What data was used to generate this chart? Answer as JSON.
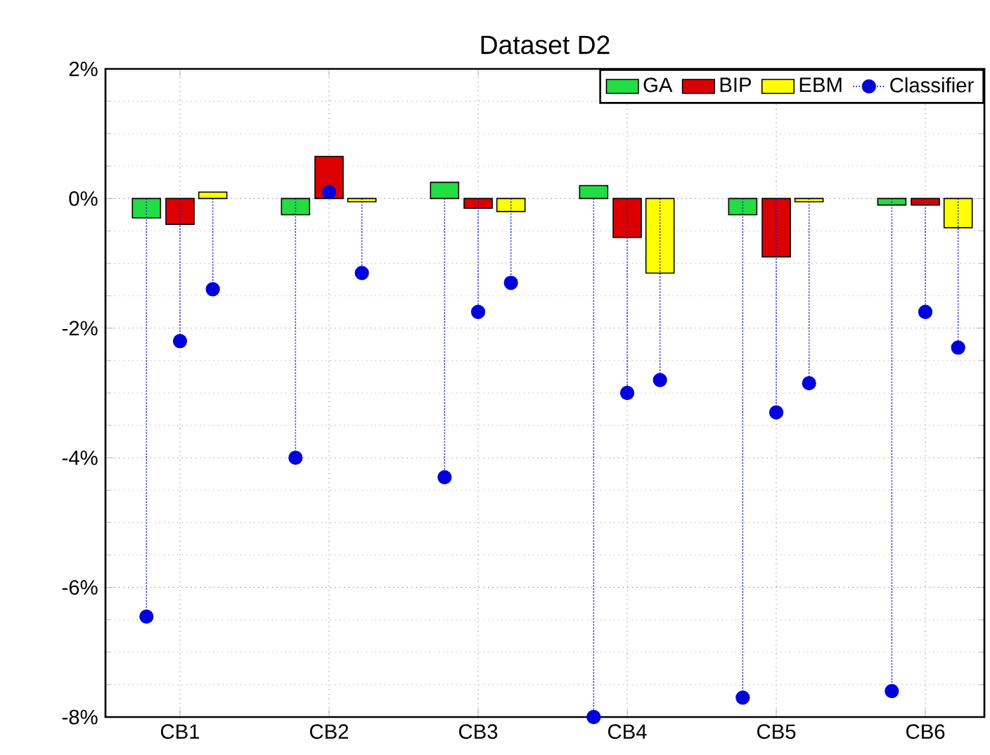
{
  "chart_data": {
    "type": "bar",
    "title": "Dataset D2",
    "categories": [
      "CB1",
      "CB2",
      "CB3",
      "CB4",
      "CB5",
      "CB6"
    ],
    "series": [
      {
        "name": "GA",
        "color": "#22dd44",
        "values": [
          -0.3,
          -0.25,
          0.25,
          0.2,
          -0.25,
          -0.1
        ]
      },
      {
        "name": "BIP",
        "color": "#dd0000",
        "values": [
          -0.4,
          0.65,
          -0.15,
          -0.6,
          -0.9,
          -0.1
        ]
      },
      {
        "name": "EBM",
        "color": "#ffff00",
        "values": [
          0.1,
          -0.05,
          -0.2,
          -1.15,
          -0.05,
          -0.45
        ]
      },
      {
        "name": "Classifier",
        "type": "lollipop",
        "color": "#0000dd",
        "values": [
          -6.45,
          -4.0,
          -4.3,
          -8.0,
          -7.7,
          -7.6
        ]
      },
      {
        "type": "lollipop",
        "color": "#0000dd",
        "values": [
          -2.2,
          0.1,
          -1.75,
          -3.0,
          -3.3,
          -1.75
        ]
      },
      {
        "type": "lollipop",
        "color": "#0000dd",
        "values": [
          -1.4,
          -1.15,
          -1.3,
          -2.8,
          -2.85,
          -2.3
        ]
      }
    ],
    "ylim": [
      -8,
      2
    ],
    "yticks": [
      {
        "value": -8,
        "label": "-8%"
      },
      {
        "value": -6,
        "label": "-6%"
      },
      {
        "value": -4,
        "label": "-4%"
      },
      {
        "value": -2,
        "label": "-2%"
      },
      {
        "value": 0,
        "label": "0%"
      },
      {
        "value": 2,
        "label": "2%"
      }
    ],
    "grid": true,
    "legend": "top right",
    "marker": "circle",
    "line_style": "dotted"
  }
}
